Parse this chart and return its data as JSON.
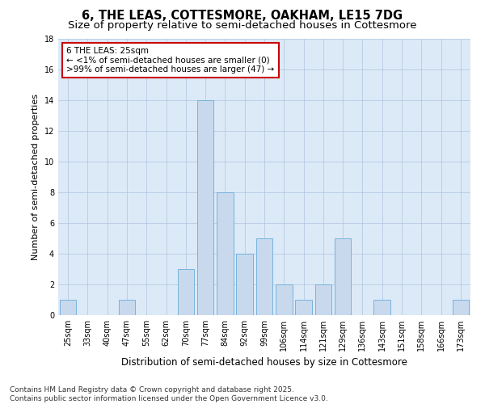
{
  "title": "6, THE LEAS, COTTESMORE, OAKHAM, LE15 7DG",
  "subtitle": "Size of property relative to semi-detached houses in Cottesmore",
  "xlabel": "Distribution of semi-detached houses by size in Cottesmore",
  "ylabel": "Number of semi-detached properties",
  "categories": [
    "25sqm",
    "33sqm",
    "40sqm",
    "47sqm",
    "55sqm",
    "62sqm",
    "70sqm",
    "77sqm",
    "84sqm",
    "92sqm",
    "99sqm",
    "106sqm",
    "114sqm",
    "121sqm",
    "129sqm",
    "136sqm",
    "143sqm",
    "151sqm",
    "158sqm",
    "166sqm",
    "173sqm"
  ],
  "values": [
    1,
    0,
    0,
    1,
    0,
    0,
    3,
    14,
    8,
    4,
    5,
    2,
    1,
    2,
    5,
    0,
    1,
    0,
    0,
    0,
    1
  ],
  "bar_color": "#c8d9ee",
  "bar_edge_color": "#6aacd8",
  "background_color": "#ffffff",
  "plot_bg_color": "#dce9f7",
  "grid_color": "#b0c4de",
  "annotation_text": "6 THE LEAS: 25sqm\n← <1% of semi-detached houses are smaller (0)\n>99% of semi-detached houses are larger (47) →",
  "annotation_box_color": "#ffffff",
  "annotation_box_edge_color": "#cc0000",
  "ylim": [
    0,
    18
  ],
  "yticks": [
    0,
    2,
    4,
    6,
    8,
    10,
    12,
    14,
    16,
    18
  ],
  "footer": "Contains HM Land Registry data © Crown copyright and database right 2025.\nContains public sector information licensed under the Open Government Licence v3.0.",
  "title_fontsize": 10.5,
  "subtitle_fontsize": 9.5,
  "xlabel_fontsize": 8.5,
  "ylabel_fontsize": 8,
  "tick_fontsize": 7,
  "annotation_fontsize": 7.5,
  "footer_fontsize": 6.5
}
